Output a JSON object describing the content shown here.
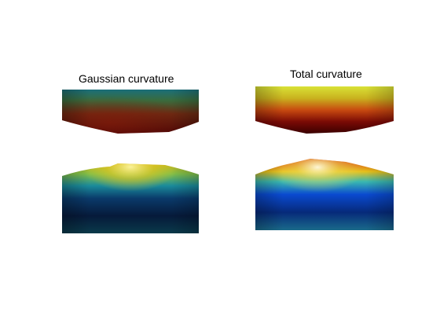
{
  "figure": {
    "titles": {
      "left": "Gaussian curvature",
      "right": "Total curvature"
    },
    "colors": {
      "background": "#ffffff",
      "colormap": [
        "#00007f",
        "#0000ff",
        "#00ffff",
        "#ffff00",
        "#ff0000",
        "#7f0000"
      ]
    }
  }
}
